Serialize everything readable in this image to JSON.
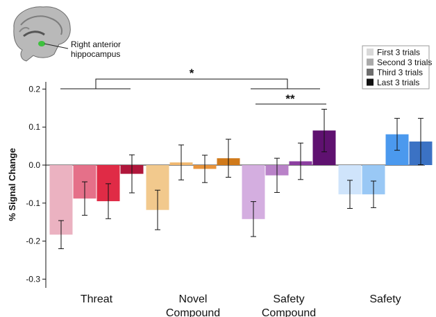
{
  "chart_data": {
    "type": "bar",
    "ylabel": "% Signal Change",
    "ylim": [
      -0.32,
      0.22
    ],
    "yticks": [
      0.2,
      0.1,
      0.0,
      -0.1,
      -0.2,
      -0.3
    ],
    "ytick_labels": [
      "0.2",
      "0.1",
      "0.0",
      "-0.1",
      "-0.2",
      "-0.3"
    ],
    "categories": [
      {
        "lines": [
          "Threat"
        ]
      },
      {
        "lines": [
          "Novel",
          "Compound"
        ]
      },
      {
        "lines": [
          "Safety",
          "Compound"
        ]
      },
      {
        "lines": [
          "Safety"
        ]
      }
    ],
    "series": [
      {
        "name": "First 3 trials",
        "values": [
          -0.183,
          -0.118,
          -0.142,
          -0.077
        ],
        "error": [
          0.037,
          0.052,
          0.046,
          0.037
        ]
      },
      {
        "name": "Second 3 trials",
        "values": [
          -0.088,
          0.007,
          -0.027,
          -0.077
        ],
        "error": [
          0.044,
          0.046,
          0.045,
          0.035
        ]
      },
      {
        "name": "Third 3 trials",
        "values": [
          -0.095,
          -0.01,
          0.01,
          0.081
        ],
        "error": [
          0.046,
          0.036,
          0.048,
          0.042
        ]
      },
      {
        "name": "Last 3 trials",
        "values": [
          -0.023,
          0.018,
          0.091,
          0.062
        ],
        "error": [
          0.05,
          0.05,
          0.056,
          0.061
        ]
      }
    ],
    "colors": [
      [
        "#ebb2c1",
        "#e57089",
        "#e02b46",
        "#b0163b"
      ],
      [
        "#f2c98d",
        "#f0b870",
        "#e9943b",
        "#d07a1b"
      ],
      [
        "#d4aee0",
        "#b982c8",
        "#8c3ea0",
        "#5f1170"
      ],
      [
        "#cfe4fb",
        "#99c8f5",
        "#4b99ee",
        "#3b72c4"
      ]
    ],
    "legend_colors": [
      "#d9d9d9",
      "#a9a9a9",
      "#6e6e6e",
      "#111111"
    ],
    "annotations": [
      {
        "text": "*",
        "between": "Threat vs Safety Compound"
      },
      {
        "text": "**",
        "between": "Safety Compound last vs first trials"
      }
    ],
    "brain_label": [
      "Right anterior",
      "hippocampus"
    ]
  }
}
